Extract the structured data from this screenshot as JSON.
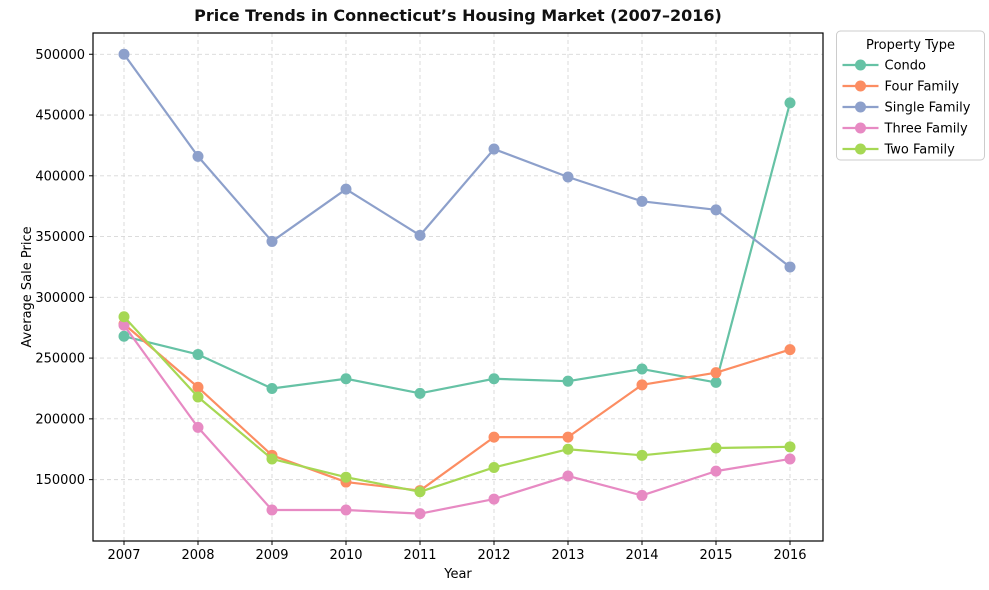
{
  "chart_data": {
    "type": "line",
    "title": "Price Trends in Connecticut’s Housing Market (2007–2016)",
    "xlabel": "Year",
    "ylabel": "Average Sale Price",
    "categories": [
      "2007",
      "2008",
      "2009",
      "2010",
      "2011",
      "2012",
      "2013",
      "2014",
      "2015",
      "2016"
    ],
    "series": [
      {
        "name": "Condo",
        "color": "#66c2a5",
        "values": [
          268000,
          253000,
          225000,
          233000,
          221000,
          233000,
          231000,
          241000,
          230000,
          460000
        ]
      },
      {
        "name": "Four Family",
        "color": "#fc8d62",
        "values": [
          278000,
          226000,
          170000,
          148000,
          141000,
          185000,
          185000,
          228000,
          238000,
          257000
        ]
      },
      {
        "name": "Single Family",
        "color": "#8da0cb",
        "values": [
          500000,
          416000,
          346000,
          389000,
          351000,
          422000,
          399000,
          379000,
          372000,
          325000
        ]
      },
      {
        "name": "Three Family",
        "color": "#e78ac3",
        "values": [
          277000,
          193000,
          125000,
          125000,
          122000,
          134000,
          153000,
          137000,
          157000,
          167000
        ]
      },
      {
        "name": "Two Family",
        "color": "#a6d854",
        "values": [
          284000,
          218000,
          167000,
          152000,
          140000,
          160000,
          175000,
          170000,
          176000,
          177000
        ]
      }
    ],
    "y_ticks": [
      150000,
      200000,
      250000,
      300000,
      350000,
      400000,
      450000,
      500000
    ],
    "ylim": [
      99500,
      517500
    ],
    "grid": true,
    "grid_style": "dashed",
    "grid_color": "#d8d8d8",
    "axis_color": "#000000",
    "legend": {
      "title": "Property Type",
      "position": "upper-right-outside"
    }
  }
}
